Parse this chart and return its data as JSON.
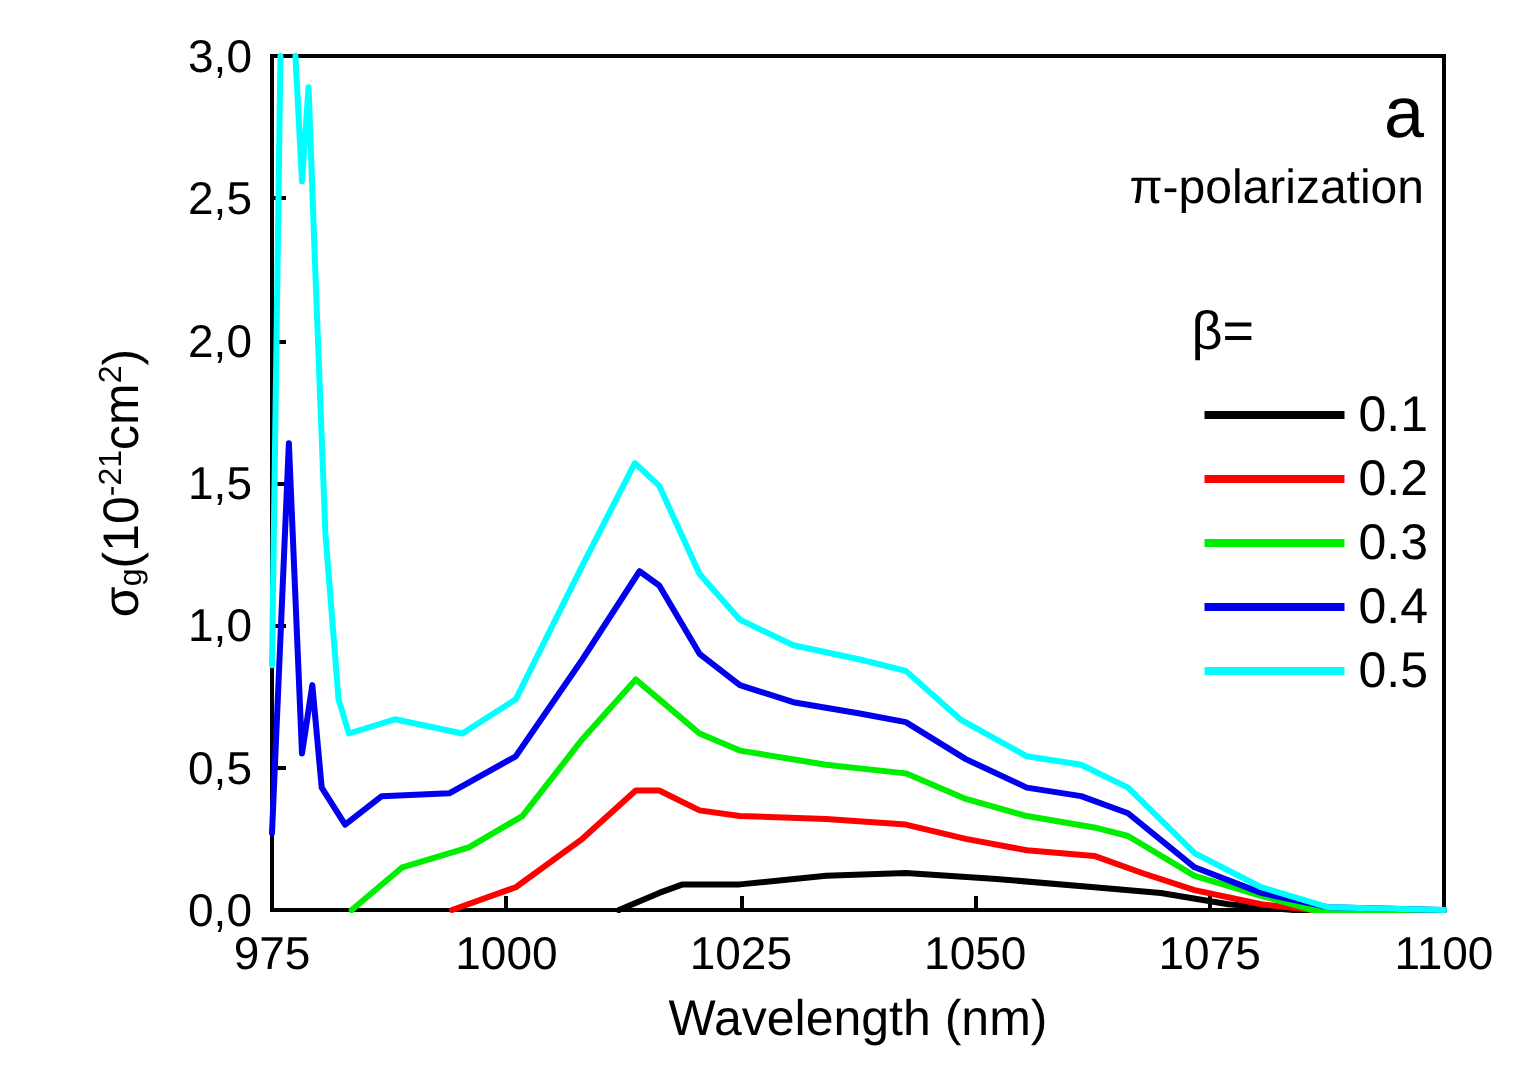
{
  "chart_data": {
    "type": "line",
    "xlabel": "Wavelength (nm)",
    "ylabel": "σ$_{g}$(10$^{-21}$cm$^{2}$)",
    "legend_title": "β=",
    "annotations": [
      "a",
      "π-polarization"
    ],
    "xlim": [
      975,
      1100
    ],
    "xticks": [
      975,
      1000,
      1025,
      1050,
      1075,
      1100
    ],
    "ylim": [
      0,
      3.0
    ],
    "yticks": [
      {
        "value": 0,
        "label": "0,0"
      },
      {
        "value": 0.5,
        "label": "0,5"
      },
      {
        "value": 1.0,
        "label": "1,0"
      },
      {
        "value": 1.5,
        "label": "1,5"
      },
      {
        "value": 2.0,
        "label": "2,0"
      },
      {
        "value": 2.5,
        "label": "2,5"
      },
      {
        "value": 3.0,
        "label": "3,0"
      }
    ],
    "grid": false,
    "legend": "right",
    "marker": "none",
    "line_style": "solid",
    "series": [
      {
        "name": "0.1",
        "color": "#000000",
        "x": [
          1012,
          1016.3,
          1018.8,
          1024.9,
          1034.1,
          1042.6,
          1051.9,
          1062.7,
          1069.8,
          1077,
          1084,
          1100
        ],
        "values": [
          0,
          0.06,
          0.09,
          0.09,
          0.12,
          0.13,
          0.11,
          0.08,
          0.06,
          0.02,
          0,
          0
        ]
      },
      {
        "name": "0.2",
        "color": "#ff0000",
        "x": [
          994.2,
          1001,
          1008.1,
          1013.8,
          1016.3,
          1020.6,
          1024.9,
          1034.1,
          1042.6,
          1049,
          1055.5,
          1062.7,
          1067.8,
          1073.4,
          1080.5,
          1086,
          1100
        ],
        "values": [
          0,
          0.08,
          0.25,
          0.42,
          0.42,
          0.35,
          0.33,
          0.32,
          0.3,
          0.25,
          0.21,
          0.19,
          0.13,
          0.07,
          0.02,
          0,
          0
        ]
      },
      {
        "name": "0.3",
        "color": "#00ee00",
        "x": [
          983.5,
          988.9,
          996,
          1001.7,
          1008.1,
          1013.8,
          1016.3,
          1020.6,
          1024.9,
          1034.1,
          1042.6,
          1049,
          1055.5,
          1062.7,
          1066.3,
          1073.4,
          1080.5,
          1086,
          1100
        ],
        "values": [
          0,
          0.15,
          0.22,
          0.33,
          0.6,
          0.81,
          0.74,
          0.62,
          0.56,
          0.51,
          0.48,
          0.39,
          0.33,
          0.29,
          0.26,
          0.12,
          0.05,
          0,
          0
        ]
      },
      {
        "name": "0.4",
        "color": "#0000ee",
        "x": [
          975,
          976.8,
          978.2,
          979.3,
          980.3,
          982.8,
          986.7,
          993.9,
          1001,
          1008.1,
          1014.2,
          1016.3,
          1020.6,
          1024.9,
          1030.6,
          1037.7,
          1042.6,
          1049,
          1055.5,
          1061.3,
          1066.3,
          1073.4,
          1080.5,
          1087.6,
          1100
        ],
        "values": [
          0.27,
          1.64,
          0.55,
          0.79,
          0.43,
          0.3,
          0.4,
          0.41,
          0.54,
          0.88,
          1.19,
          1.14,
          0.9,
          0.79,
          0.73,
          0.69,
          0.66,
          0.53,
          0.43,
          0.4,
          0.34,
          0.15,
          0.06,
          0.01,
          0
        ]
      },
      {
        "name": "0.5",
        "color": "#00ffff",
        "x": [
          975,
          975.9,
          976.7,
          977.5,
          978.2,
          978.9,
          979.6,
          980.7,
          982.1,
          983.2,
          988.1,
          995.3,
          1001,
          1008.1,
          1013.7,
          1016.3,
          1020.6,
          1024.9,
          1030.6,
          1037.7,
          1042.6,
          1048.4,
          1055.5,
          1061.3,
          1066.3,
          1073.4,
          1080.5,
          1087.6,
          1100
        ],
        "values": [
          0.86,
          3.0,
          null,
          3.0,
          2.56,
          2.89,
          2.26,
          1.32,
          0.74,
          0.62,
          0.67,
          0.62,
          0.74,
          1.21,
          1.57,
          1.49,
          1.18,
          1.02,
          0.93,
          0.88,
          0.84,
          0.67,
          0.54,
          0.51,
          0.43,
          0.2,
          0.08,
          0.01,
          0
        ]
      }
    ]
  }
}
